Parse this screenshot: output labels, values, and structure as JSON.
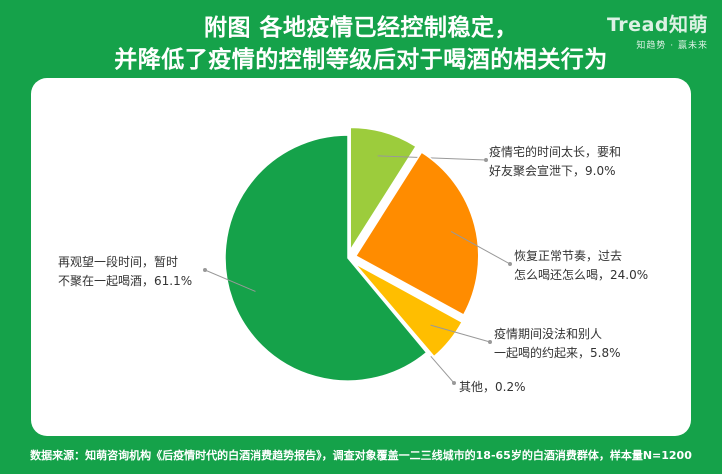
{
  "title": {
    "line1": "附图  各地疫情已经控制稳定，",
    "line2": "并降低了疫情的控制等级后对于喝酒的相关行为"
  },
  "logo": {
    "brand": "Tread知萌",
    "slogan": "知趋势 · 赢未来"
  },
  "chart_data": {
    "type": "pie",
    "slices": [
      {
        "label_line1": "疫情宅的时间太长，要和",
        "label_line2": "好友聚会宣泄下，",
        "value": 9.0,
        "value_text": "9.0%",
        "color": "#9ccc3c"
      },
      {
        "label_line1": "恢复正常节奏，过去",
        "label_line2": "怎么喝还怎么喝，",
        "value": 24.0,
        "value_text": "24.0%",
        "color": "#ff8c00"
      },
      {
        "label_line1": "疫情期间没法和别人",
        "label_line2": "一起喝的约起来，",
        "value": 5.8,
        "value_text": "5.8%",
        "color": "#ffbe00"
      },
      {
        "label_line1": "其他，",
        "label_line2": "",
        "value": 0.2,
        "value_text": "0.2%",
        "color": "#c8c8c8"
      },
      {
        "label_line1": "再观望一段时间，暂时",
        "label_line2": "不聚在一起喝酒，",
        "value": 61.1,
        "value_text": "61.1%",
        "color": "#15a24a"
      }
    ]
  },
  "footer": {
    "source": "数据来源：知萌咨询机构《后疫情时代的白酒消费趋势报告》，调查对象覆盖一二三线城市的18-65岁的白酒消费群体，样本量N=1200"
  }
}
